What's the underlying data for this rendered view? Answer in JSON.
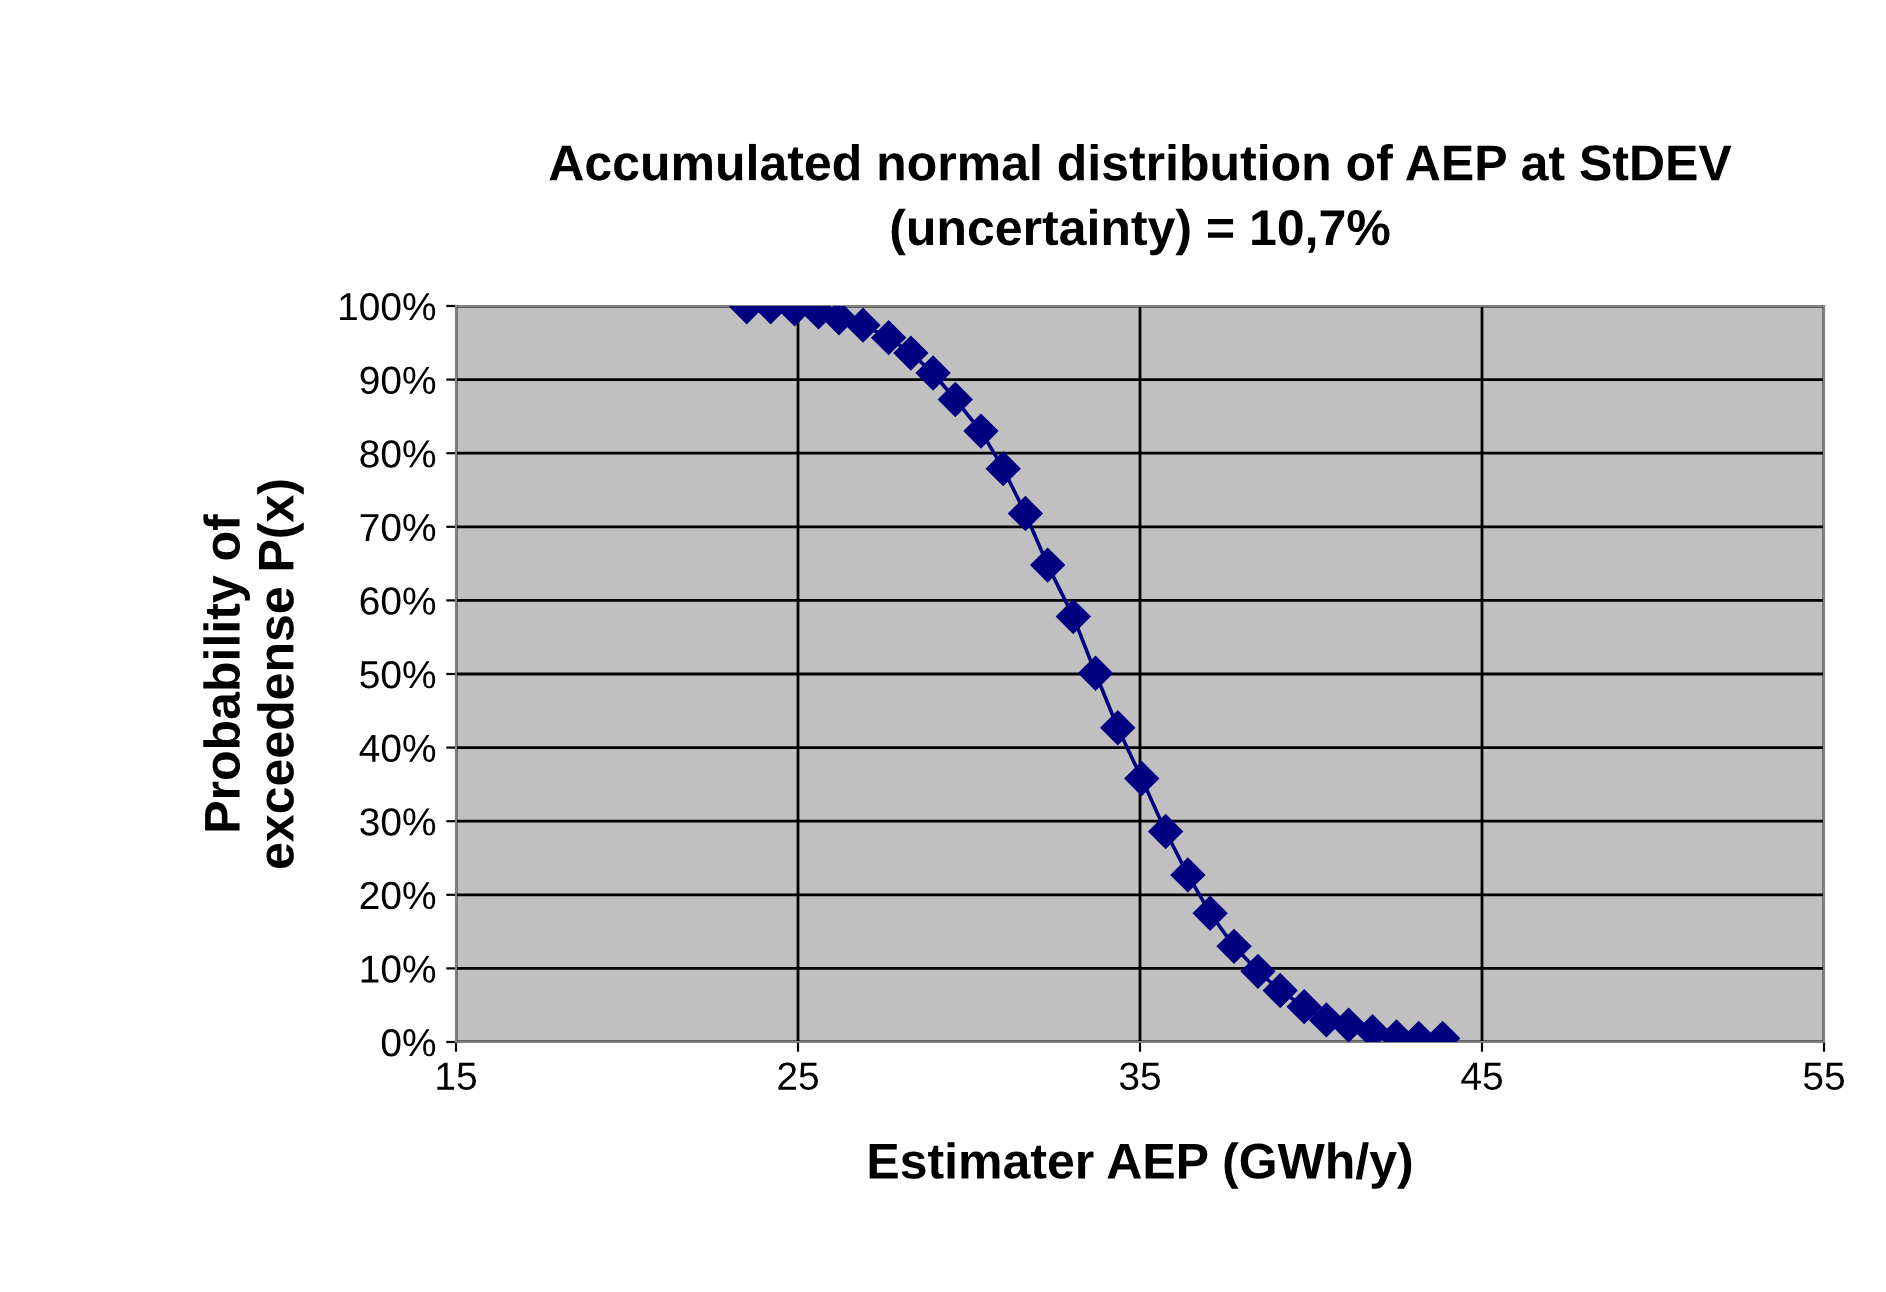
{
  "chart_data": {
    "type": "line",
    "title": "Accumulated normal distribution of AEP at StDEV\n(uncertainty) = 10,7%",
    "xlabel": "Estimater AEP (GWh/y)",
    "ylabel": "Probability of\nexceedense P(x)",
    "x": [
      23.5,
      24.2,
      24.9,
      25.6,
      26.2,
      26.9,
      27.65,
      28.3,
      28.95,
      29.6,
      30.35,
      31.0,
      31.65,
      32.3,
      33.05,
      33.7,
      34.35,
      35.05,
      35.75,
      36.4,
      37.05,
      37.75,
      38.45,
      39.1,
      39.8,
      40.45,
      41.1,
      41.8,
      42.5,
      43.15,
      43.85
    ],
    "series": [
      {
        "color": "#000080",
        "values": [
          99.9,
          99.9,
          99.6,
          99.2,
          98.4,
          97.4,
          95.7,
          93.6,
          90.9,
          87.3,
          83.0,
          77.9,
          71.8,
          64.8,
          57.8,
          50.1,
          42.7,
          35.8,
          28.6,
          22.7,
          17.5,
          13.0,
          9.6,
          7.0,
          4.8,
          3.0,
          2.3,
          1.4,
          0.7,
          0.5,
          0.5
        ]
      }
    ],
    "xlim": [
      15,
      55
    ],
    "xticks": [
      15,
      25,
      35,
      45,
      55
    ],
    "ylim": [
      0,
      100
    ],
    "yticks": [
      {
        "value": 0,
        "label": "0%"
      },
      {
        "value": 10,
        "label": "10%"
      },
      {
        "value": 20,
        "label": "20%"
      },
      {
        "value": 30,
        "label": "30%"
      },
      {
        "value": 40,
        "label": "40%"
      },
      {
        "value": 50,
        "label": "50%"
      },
      {
        "value": 60,
        "label": "60%"
      },
      {
        "value": 70,
        "label": "70%"
      },
      {
        "value": 80,
        "label": "80%"
      },
      {
        "value": 90,
        "label": "90%"
      },
      {
        "value": 100,
        "label": "100%"
      }
    ],
    "grid": true,
    "marker": "diamond",
    "line_style": "solid"
  }
}
